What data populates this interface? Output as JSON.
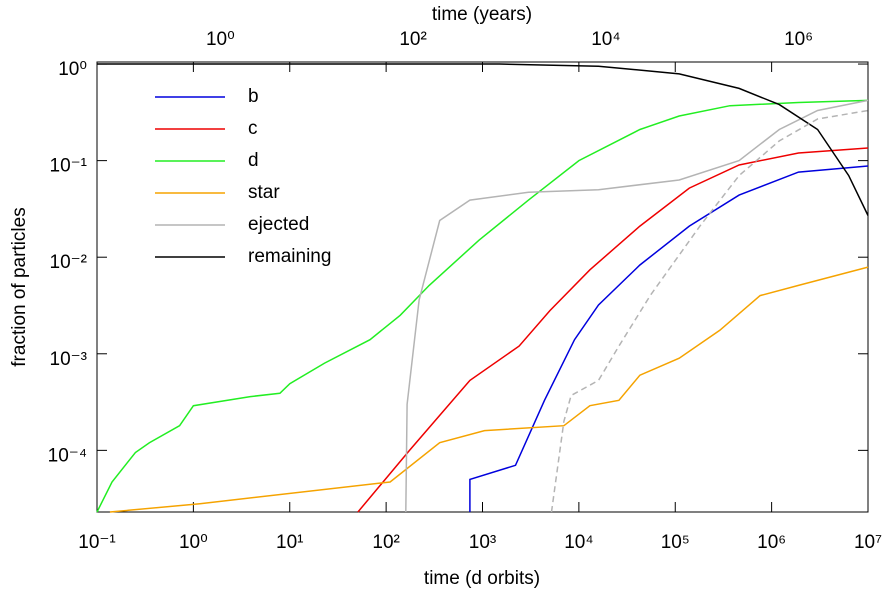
{
  "chart_data": {
    "type": "line",
    "xlabel": "time (d orbits)",
    "ylabel": "fraction of particles",
    "x2label": "time (years)",
    "xscale": "log",
    "yscale": "log",
    "xlim": [
      0.1,
      10000000
    ],
    "ylim": [
      2.3e-05,
      1.05
    ],
    "x2lim": [
      0.0525,
      5250000
    ],
    "xticks": [
      {
        "value": 0.1,
        "label": "10⁻¹"
      },
      {
        "value": 1,
        "label": "10⁰"
      },
      {
        "value": 10,
        "label": "10¹"
      },
      {
        "value": 100,
        "label": "10²"
      },
      {
        "value": 1000,
        "label": "10³"
      },
      {
        "value": 10000,
        "label": "10⁴"
      },
      {
        "value": 100000,
        "label": "10⁵"
      },
      {
        "value": 1000000,
        "label": "10⁶"
      },
      {
        "value": 10000000,
        "label": "10⁷"
      }
    ],
    "x2ticks": [
      {
        "value": 1,
        "label": "10⁰"
      },
      {
        "value": 100,
        "label": "10²"
      },
      {
        "value": 10000,
        "label": "10⁴"
      },
      {
        "value": 1000000,
        "label": "10⁶"
      }
    ],
    "yticks": [
      {
        "value": 0.0001,
        "label": "10⁻⁴"
      },
      {
        "value": 0.001,
        "label": "10⁻³"
      },
      {
        "value": 0.01,
        "label": "10⁻²"
      },
      {
        "value": 0.1,
        "label": "10⁻¹"
      },
      {
        "value": 1,
        "label": "10⁰"
      }
    ],
    "legend": "upper left",
    "series": [
      {
        "name": "b",
        "color": "#0000dd",
        "x": [
          740,
          740,
          2200,
          4400,
          9000,
          16000,
          43000,
          140000,
          460000,
          1900000,
          10000000
        ],
        "values": [
          2.3e-05,
          5e-05,
          7e-05,
          0.00033,
          0.0014,
          0.0032,
          0.0083,
          0.021,
          0.044,
          0.076,
          0.088
        ]
      },
      {
        "name": "c",
        "color": "#ee0000",
        "x": [
          51,
          175,
          360,
          740,
          2400,
          5000,
          13000,
          43000,
          140000,
          460000,
          1900000,
          10000000
        ],
        "values": [
          2.3e-05,
          0.0001,
          0.00023,
          0.00053,
          0.0012,
          0.0028,
          0.0074,
          0.021,
          0.052,
          0.09,
          0.12,
          0.135
        ]
      },
      {
        "name": "d",
        "color": "#22ee22",
        "x": [
          0.1,
          0.143,
          0.25,
          0.35,
          0.72,
          1.0,
          3.9,
          7.9,
          10,
          23,
          68,
          140,
          280,
          920,
          3000,
          10000,
          43000,
          110000,
          370000,
          1900000,
          10000000
        ],
        "values": [
          2.3e-05,
          4.7e-05,
          9.5e-05,
          0.00012,
          0.00018,
          0.00029,
          0.00036,
          0.00039,
          0.00049,
          0.0008,
          0.0014,
          0.0025,
          0.0051,
          0.015,
          0.039,
          0.1,
          0.21,
          0.29,
          0.37,
          0.4,
          0.42
        ]
      },
      {
        "name": "star",
        "color": "#f5a300",
        "x": [
          0.136,
          1.17,
          110,
          360,
          1050,
          7000,
          13000,
          26000,
          43000,
          110000,
          290000,
          760000,
          1900000,
          10000000
        ],
        "values": [
          2.3e-05,
          2.8e-05,
          4.7e-05,
          0.00012,
          0.00016,
          0.00018,
          0.00029,
          0.00033,
          0.0006,
          0.0009,
          0.00175,
          0.004,
          0.0051,
          0.0079
        ]
      },
      {
        "name": "ejected",
        "color": "#b4b4b4",
        "x": [
          160,
          165,
          220,
          360,
          740,
          3000,
          16000,
          110000,
          460000,
          1200000,
          3000000,
          10000000
        ],
        "values": [
          2.3e-05,
          0.0003,
          0.0036,
          0.024,
          0.039,
          0.047,
          0.05,
          0.063,
          0.1,
          0.21,
          0.33,
          0.42
        ]
      },
      {
        "name": "remaining",
        "color": "#000000",
        "x": [
          0.1,
          1500,
          16000,
          110000,
          460000,
          1200000,
          3000000,
          6300000,
          10000000
        ],
        "values": [
          1.0,
          1.0,
          0.95,
          0.79,
          0.56,
          0.38,
          0.21,
          0.07,
          0.027
        ]
      },
      {
        "color": "#b4b4b4",
        "dashed": true,
        "x": [
          5200,
          7000,
          8300,
          16000,
          26000,
          55000,
          180000,
          460000,
          1200000,
          3000000,
          10000000
        ],
        "values": [
          2.3e-05,
          0.0002,
          0.00037,
          0.00053,
          0.0012,
          0.004,
          0.021,
          0.07,
          0.16,
          0.27,
          0.33
        ]
      }
    ]
  }
}
